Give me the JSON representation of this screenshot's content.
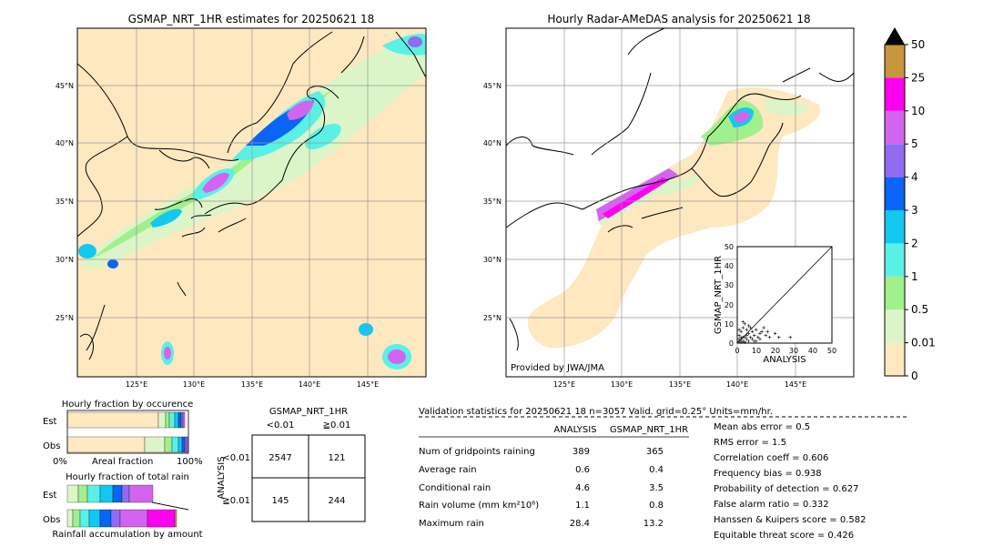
{
  "chart_data": [
    {
      "type": "map",
      "title": "GSMAP_NRT_1HR estimates for 20250621 18",
      "x_ticks": [
        "125°E",
        "130°E",
        "135°E",
        "140°E",
        "145°E"
      ],
      "y_ticks": [
        "25°N",
        "30°N",
        "35°N",
        "40°N",
        "45°N"
      ]
    },
    {
      "type": "map",
      "title": "Hourly Radar-AMeDAS analysis for 20250621 18",
      "x_ticks": [
        "125°E",
        "130°E",
        "135°E",
        "140°E",
        "145°E"
      ],
      "y_ticks": [
        "25°N",
        "30°N",
        "35°N",
        "40°N",
        "45°N"
      ],
      "credit": "Provided by JWA/JMA"
    },
    {
      "type": "scatter",
      "xlabel": "ANALYSIS",
      "ylabel": "GSMAP_NRT_1HR",
      "xlim": [
        0,
        50
      ],
      "ylim": [
        0,
        50
      ],
      "ticks": [
        "0",
        "10",
        "20",
        "30",
        "40",
        "50"
      ]
    },
    {
      "type": "colorbar",
      "levels": [
        "0",
        "0.01",
        "0.5",
        "1",
        "2",
        "3",
        "4",
        "5",
        "10",
        "25",
        "50"
      ],
      "colors": [
        "#fde8c0",
        "#dcf5c8",
        "#a0f08c",
        "#5af0e6",
        "#12c8f0",
        "#0a64f5",
        "#8f6cf0",
        "#d264ef",
        "#ff00f0",
        "#c8963c",
        "#000000"
      ]
    },
    {
      "type": "bar",
      "title": "Hourly fraction by occurence",
      "categories": [
        "Est",
        "Obs"
      ],
      "xlabel": "Areal fraction",
      "x_ticks": [
        "0%",
        "100%"
      ]
    },
    {
      "type": "bar",
      "title": "Hourly fraction of total rain",
      "categories": [
        "Est",
        "Obs"
      ],
      "xlabel": "Rainfall accumulation by amount"
    },
    {
      "type": "table",
      "title": "GSMAP_NRT_1HR",
      "col_headers": [
        "<0.01",
        "≧0.01"
      ],
      "row_axis": "ANALYSIS",
      "row_headers": [
        "<0.01",
        "≧0.01"
      ],
      "cells": [
        [
          "2547",
          "121"
        ],
        [
          "145",
          "244"
        ]
      ]
    }
  ],
  "validation": {
    "header": "Validation statistics for 20250621 18  n=3057 Valid. grid=0.25°  Units=mm/hr.",
    "col_analysis": "ANALYSIS",
    "col_gsmap": "GSMAP_NRT_1HR",
    "rows": [
      {
        "label": "Num of gridpoints raining",
        "analysis": "389",
        "gsmap": "365"
      },
      {
        "label": "Average rain",
        "analysis": "0.6",
        "gsmap": "0.4"
      },
      {
        "label": "Conditional rain",
        "analysis": "4.6",
        "gsmap": "3.5"
      },
      {
        "label": "Rain volume (mm km²10⁶)",
        "analysis": "1.1",
        "gsmap": "0.8"
      },
      {
        "label": "Maximum rain",
        "analysis": "28.4",
        "gsmap": "13.2"
      }
    ],
    "scores": [
      "Mean abs error =    0.5",
      "RMS error =    1.5",
      "Correlation coeff =  0.606",
      "Frequency bias =  0.938",
      "Probability of detection =  0.627",
      "False alarm ratio =  0.332",
      "Hanssen & Kuipers score =  0.582",
      "Equitable threat score =  0.426"
    ]
  }
}
